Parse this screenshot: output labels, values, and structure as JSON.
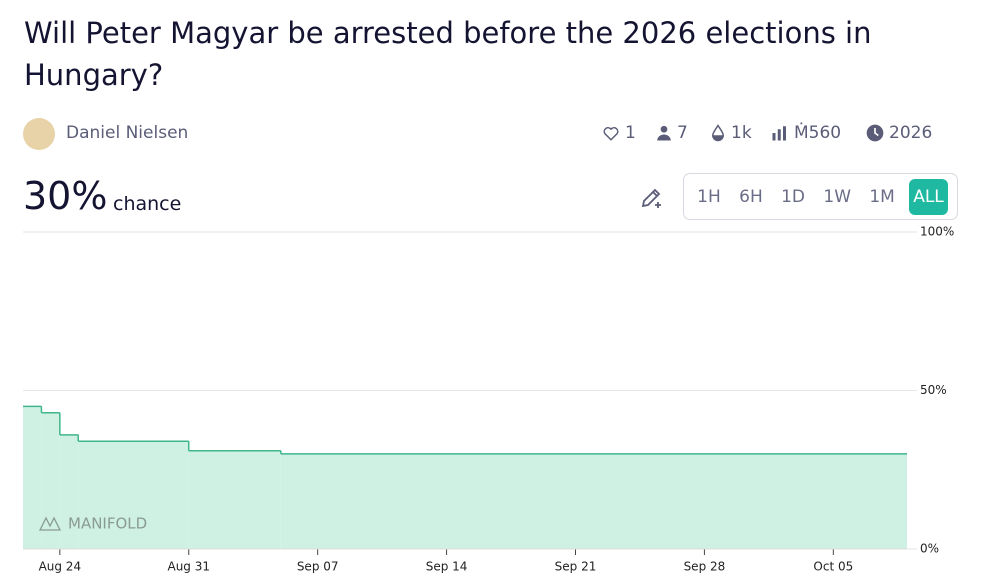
{
  "header": {
    "title": "Will Peter Magyar be arrested before the 2026 elections in Hungary?",
    "author": "Daniel Nielsen",
    "stats": {
      "likes": "1",
      "traders": "7",
      "liquidity": "1k",
      "volume": "Ṁ560",
      "close": "2026"
    },
    "probability": "30%",
    "probability_label": "chance",
    "time_ranges": [
      "1H",
      "6H",
      "1D",
      "1W",
      "1M",
      "ALL"
    ],
    "active_range": "ALL"
  },
  "chart_data": {
    "type": "step",
    "x": [
      "Aug 22",
      "Aug 23",
      "Aug 24",
      "Aug 25",
      "Aug 31",
      "Sep 05"
    ],
    "values": [
      45,
      43,
      36,
      34,
      31,
      30
    ],
    "color": "#3fb68c",
    "fill": "#cef1e3",
    "xlim": [
      "Aug 22",
      "Oct 09"
    ],
    "xticks": [
      "Aug 24",
      "Aug 31",
      "Sep 07",
      "Sep 14",
      "Sep 21",
      "Sep 28",
      "Oct 05"
    ],
    "ylim": [
      0,
      100
    ],
    "yticks": [
      {
        "value": 0,
        "label": "0%"
      },
      {
        "value": 50,
        "label": "50%"
      },
      {
        "value": 100,
        "label": "100%"
      }
    ],
    "grid": true,
    "watermark": "MANIFOLD"
  }
}
